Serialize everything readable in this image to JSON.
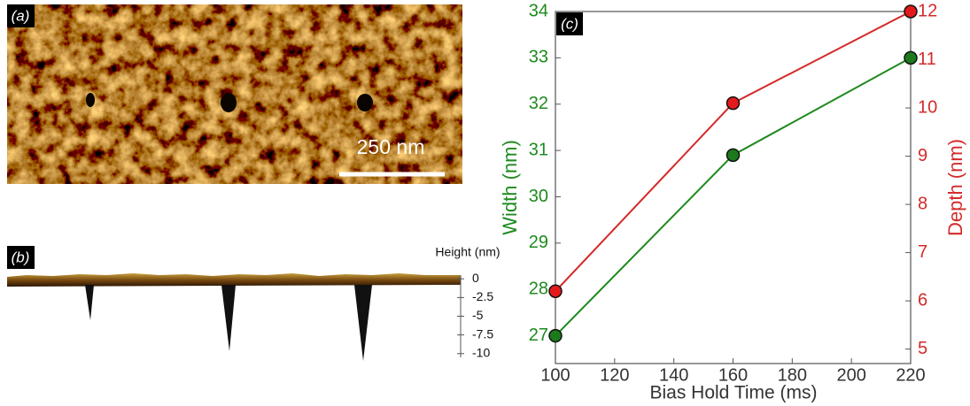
{
  "panel_a": {
    "label": "(a)",
    "scale_bar": "250 nm"
  },
  "panel_b": {
    "label": "(b)",
    "axis_title": "Height (nm)",
    "ylim": [
      -10.5,
      0.5
    ],
    "yticks": [
      0,
      -2.5,
      -5,
      -7.5,
      -10
    ]
  },
  "chart_data": {
    "type": "line",
    "label": "(c)",
    "xlabel": "Bias Hold Time (ms)",
    "ylabel": "Width (nm)",
    "y2label": "Depth (nm)",
    "x": [
      100,
      160,
      220
    ],
    "xlim": [
      100,
      220
    ],
    "xticks": [
      100,
      120,
      140,
      160,
      180,
      200,
      220
    ],
    "ylim": [
      26.4,
      34
    ],
    "yticks": [
      27,
      28,
      29,
      30,
      31,
      32,
      33,
      34
    ],
    "y2lim": [
      4.7,
      12
    ],
    "y2ticks": [
      5,
      6,
      7,
      8,
      9,
      10,
      11,
      12
    ],
    "ycolor": "#1e8a1e",
    "y2color": "#d42a2a",
    "series": [
      {
        "color": "#1e8a1e",
        "marker_color": "#1c7a1c",
        "values": [
          27,
          30.9,
          33
        ]
      },
      {
        "color": "#d42a2a",
        "marker_color": "#e41a1a",
        "values": [
          6.2,
          10.1,
          12
        ],
        "axis": "y2"
      }
    ]
  }
}
